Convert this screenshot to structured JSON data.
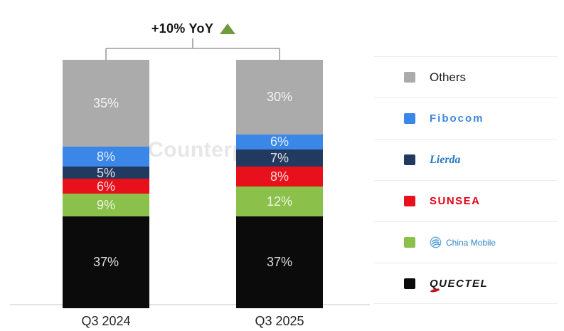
{
  "chart_data": {
    "type": "bar",
    "subtype": "stacked-100-percent",
    "title": "",
    "annotation": "+10% YoY",
    "annotation_direction": "up",
    "annotation_triangle_color": "#6f9a3d",
    "categories": [
      "Q3 2024",
      "Q3 2025"
    ],
    "series_bottom_to_top": [
      {
        "name": "Quectel",
        "color": "#0b0b0b",
        "values": [
          37,
          37
        ]
      },
      {
        "name": "China Mobile",
        "color": "#8bc04a",
        "values": [
          9,
          12
        ]
      },
      {
        "name": "Sunsea",
        "color": "#e8101a",
        "values": [
          6,
          8
        ]
      },
      {
        "name": "Lierda",
        "color": "#233a60",
        "values": [
          5,
          7
        ]
      },
      {
        "name": "Fibocom",
        "color": "#3a87e8",
        "values": [
          8,
          6
        ]
      },
      {
        "name": "Others",
        "color": "#ababab",
        "values": [
          35,
          30
        ]
      }
    ],
    "value_suffix": "%",
    "ylim": [
      0,
      100
    ],
    "grid": false,
    "legend_position": "right"
  },
  "watermark": "Counterpoint",
  "legend": {
    "items": [
      {
        "id": "others",
        "label": "Others",
        "swatch": "#ababab"
      },
      {
        "id": "fibocom",
        "label": "Fibocom",
        "swatch": "#3a87e8"
      },
      {
        "id": "lierda",
        "label": "Lierda",
        "swatch": "#233a60"
      },
      {
        "id": "sunsea",
        "label": "SUNSEA",
        "swatch": "#e8101a"
      },
      {
        "id": "china-mobile",
        "label": "China Mobile",
        "swatch": "#8bc04a"
      },
      {
        "id": "quectel",
        "label": "QUECTEL",
        "swatch": "#0b0b0b"
      }
    ]
  }
}
